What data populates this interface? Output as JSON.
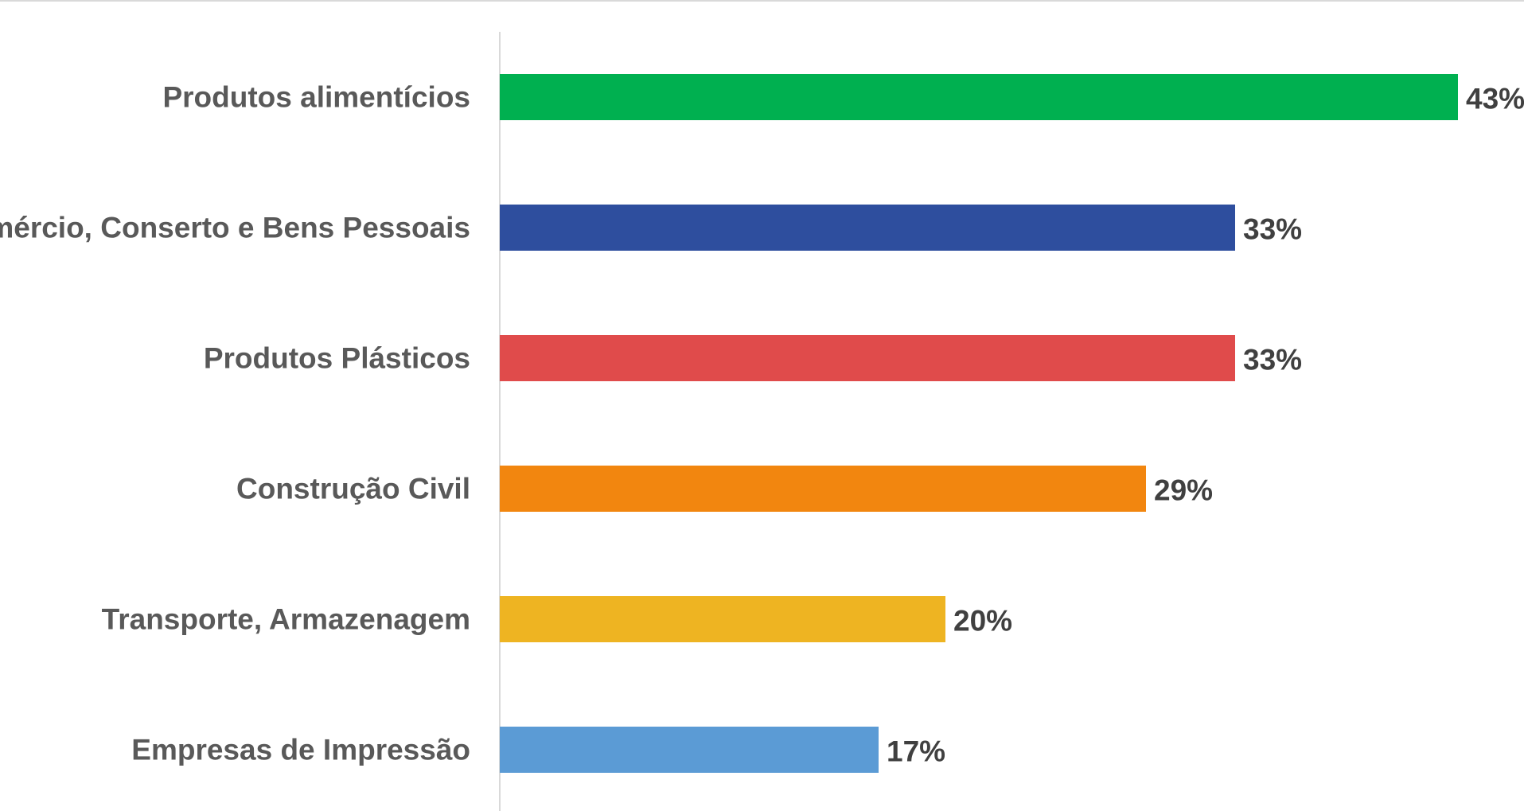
{
  "chart_data": {
    "type": "bar",
    "orientation": "horizontal",
    "title": "",
    "xlabel": "",
    "ylabel": "",
    "categories": [
      "Produtos alimentícios",
      "Comércio, Conserto e Bens Pessoais",
      "Produtos Plásticos",
      "Construção Civil",
      "Transporte, Armazenagem",
      "Empresas de Impressão"
    ],
    "values": [
      43,
      33,
      33,
      29,
      20,
      17
    ],
    "value_labels": [
      "43%",
      "33%",
      "33%",
      "29%",
      "20%",
      "17%"
    ],
    "colors": [
      "#00b050",
      "#2e4e9e",
      "#e04b4b",
      "#f2860f",
      "#eeb422",
      "#5b9bd5"
    ],
    "xlim": [
      0,
      43
    ],
    "grid": false,
    "legend": "none"
  }
}
